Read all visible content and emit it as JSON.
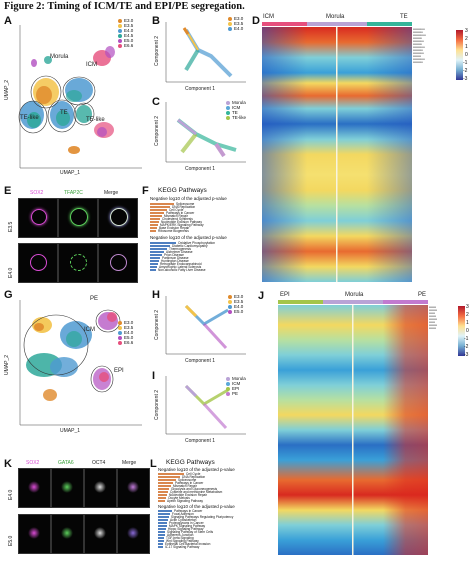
{
  "figure_title": "Figure 2: Timing of ICM/TE and EPI/PE segregation.",
  "panels": {
    "A": {
      "label": "A",
      "xaxis": "UMAP_1",
      "yaxis": "UMAP_2",
      "legend": [
        "E3.0",
        "E3.5",
        "E4.0",
        "E4.5",
        "E5.0",
        "E6.6"
      ],
      "clusters": [
        "Morula",
        "ICM",
        "TE",
        "TE-like",
        "TE-like"
      ]
    },
    "B": {
      "label": "B",
      "xaxis": "Component 1",
      "yaxis": "Component 2",
      "legend": [
        "E3.0",
        "E3.5",
        "E4.0"
      ]
    },
    "C": {
      "label": "C",
      "xaxis": "Component 1",
      "yaxis": "Component 2",
      "legend": [
        "Morula",
        "ICM",
        "TE",
        "TE-like"
      ]
    },
    "D": {
      "label": "D",
      "header": [
        "ICM",
        "Morula",
        "TE"
      ],
      "colorbar_ticks": [
        "3",
        "2",
        "1",
        "0",
        "-1",
        "-2",
        "-3"
      ]
    },
    "E": {
      "label": "E",
      "channels": [
        "SOX2",
        "TFAP2C",
        "Merge"
      ],
      "rows": [
        "E3.5",
        "E4.0"
      ]
    },
    "F": {
      "label": "F",
      "title": "KEGG Pathways",
      "sub1": "Negative log10 of the adjusted p-value",
      "terms1": [
        "Spliceosome",
        "DNA Replication",
        "Cell Cycle",
        "Pathways in Cancer",
        "Mismatch Repair",
        "Cholesterol Synthesis",
        "Nucleotide Excision Pathway",
        "MAPK/ERK Signaling Pathway",
        "Base Excision Repair",
        "Ribosome Biogenesis"
      ],
      "sub2": "Negative log10 of the adjusted p-value",
      "terms2": [
        "Oxidative Phosphorylation",
        "Diabetic Cardiomyopathy",
        "Thermogenesis",
        "Alzheimer Disease",
        "Prion Disease",
        "Parkinson Disease",
        "Huntington Disease",
        "Retrograde Endocannabinoid",
        "Amyotrophic Lateral Sclerosis",
        "Non-alcoholic Fatty Liver Disease"
      ]
    },
    "G": {
      "label": "G",
      "xaxis": "UMAP_1",
      "yaxis": "UMAP_2",
      "legend": [
        "E3.0",
        "E3.5",
        "E4.0",
        "E5.0",
        "E6.6"
      ],
      "clusters": [
        "PE",
        "ICM",
        "EPI"
      ]
    },
    "H": {
      "label": "H",
      "xaxis": "Component 1",
      "yaxis": "Component 2",
      "legend": [
        "E3.0",
        "E3.5",
        "E4.0",
        "E5.0"
      ]
    },
    "I": {
      "label": "I",
      "xaxis": "Component 1",
      "yaxis": "Component 2",
      "legend": [
        "Morula",
        "ICM",
        "EPI",
        "PE"
      ]
    },
    "J": {
      "label": "J",
      "header": [
        "EPI",
        "Morula",
        "PE"
      ],
      "colorbar_ticks": [
        "3",
        "2",
        "1",
        "0",
        "-1",
        "-2",
        "-3"
      ]
    },
    "K": {
      "label": "K",
      "channels": [
        "SOX2",
        "GATA6",
        "OCT4",
        "Merge"
      ],
      "rows": [
        "E4.0",
        "E5.0"
      ]
    },
    "L": {
      "label": "L",
      "title": "KEGG Pathways",
      "sub1": "Negative log10 of the adjusted p-value",
      "terms1": [
        "Cell Cycle",
        "DNA Replication",
        "Spliceosome",
        "Pathways in Cancer",
        "Mismatch Repair",
        "Glycolysis and Gluconeogenesis",
        "Cysteine and methionine Metabolism",
        "Nucleotide Excision Repair",
        "Oocyte Meiosis",
        "Apelin Signaling Pathway"
      ],
      "sub2": "Negative log10 of the adjusted p-value",
      "terms2": [
        "Pathways in Cancer",
        "Focal Adhesion",
        "Signaling Pathways Regulating Pluripotency",
        "Actin Cytoskeleton",
        "Proteoglycans in Cancer",
        "MAPK Signaling Pathway",
        "Hippo Signaling Pathway",
        "Signaling Pathway of Stem Cells",
        "Adherens Junction",
        "TGF-beta Signaling",
        "Wnt Signaling Pathway",
        "Epithelial Cell Bacterial Invasion",
        "IL-17 Signaling Pathway"
      ]
    }
  },
  "colors": {
    "E3.0": "#e08a2c",
    "E3.5": "#f3c34a",
    "E4.0": "#4f9ad1",
    "E4.5": "#2ea89a",
    "E5.0": "#b24fc0",
    "E6.6": "#e64f7d",
    "morula": "#b9a3d6",
    "icm": "#5aa8d8",
    "te": "#34b59a",
    "te_like": "#a4c54a",
    "kegg_top": "#d9874e",
    "kegg_bottom": "#4f7fc0",
    "sox2": "#d94cd4",
    "tfap2c": "#5ccf5c",
    "gata6": "#5ccf5c"
  }
}
